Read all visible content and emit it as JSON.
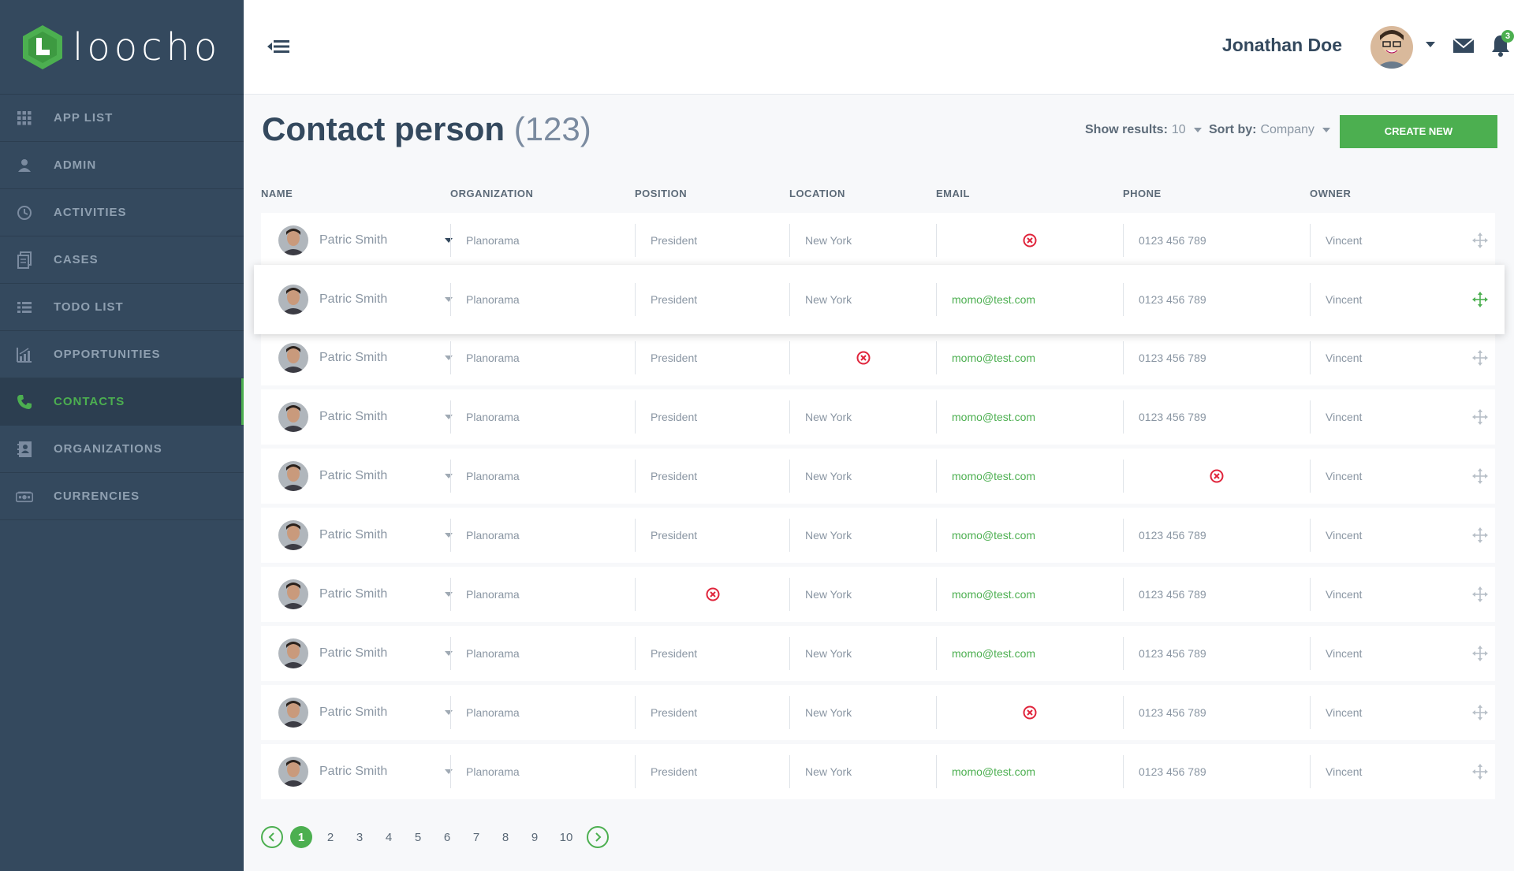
{
  "brand": {
    "name": "loocho",
    "accent": "#4caf50",
    "sidebar_bg": "#34495e"
  },
  "sidebar": {
    "items": [
      {
        "label": "APP LIST",
        "icon": "grid-icon",
        "active": false
      },
      {
        "label": "ADMIN",
        "icon": "user-icon",
        "active": false
      },
      {
        "label": "ACTIVITIES",
        "icon": "clock-icon",
        "active": false
      },
      {
        "label": "CASES",
        "icon": "documents-icon",
        "active": false
      },
      {
        "label": "TODO LIST",
        "icon": "list-icon",
        "active": false
      },
      {
        "label": "OPPORTUNITIES",
        "icon": "bar-chart-icon",
        "active": false
      },
      {
        "label": "CONTACTS",
        "icon": "phone-icon",
        "active": true
      },
      {
        "label": "ORGANIZATIONS",
        "icon": "address-book-icon",
        "active": false
      },
      {
        "label": "CURRENCIES",
        "icon": "money-icon",
        "active": false
      }
    ]
  },
  "header": {
    "user_name": "Jonathan Doe",
    "notifications_count": "3"
  },
  "page": {
    "title": "Contact person",
    "count": "(123)",
    "show_results_label": "Show results:",
    "show_results_value": "10",
    "sort_by_label": "Sort by:",
    "sort_by_value": "Company",
    "create_button": "CREATE NEW"
  },
  "table": {
    "columns": [
      "NAME",
      "ORGANIZATION",
      "POSITION",
      "LOCATION",
      "EMAIL",
      "PHONE",
      "OWNER"
    ],
    "rows": [
      {
        "name": "Patric Smith",
        "organization": "Planorama",
        "position": "President",
        "location": "New York",
        "email": null,
        "phone": "0123 456 789",
        "owner": "Vincent"
      },
      {
        "name": "Patric Smith",
        "organization": "Planorama",
        "position": "President",
        "location": "New York",
        "email": "momo@test.com",
        "phone": "0123 456 789",
        "owner": "Vincent",
        "selected": true
      },
      {
        "name": "Patric Smith",
        "organization": "Planorama",
        "position": "President",
        "location": null,
        "email": "momo@test.com",
        "phone": "0123 456 789",
        "owner": "Vincent"
      },
      {
        "name": "Patric Smith",
        "organization": "Planorama",
        "position": "President",
        "location": "New York",
        "email": "momo@test.com",
        "phone": "0123 456 789",
        "owner": "Vincent"
      },
      {
        "name": "Patric Smith",
        "organization": "Planorama",
        "position": "President",
        "location": "New York",
        "email": "momo@test.com",
        "phone": null,
        "owner": "Vincent"
      },
      {
        "name": "Patric Smith",
        "organization": "Planorama",
        "position": "President",
        "location": "New York",
        "email": "momo@test.com",
        "phone": "0123 456 789",
        "owner": "Vincent"
      },
      {
        "name": "Patric Smith",
        "organization": "Planorama",
        "position": null,
        "location": "New York",
        "email": "momo@test.com",
        "phone": "0123 456 789",
        "owner": "Vincent"
      },
      {
        "name": "Patric Smith",
        "organization": "Planorama",
        "position": "President",
        "location": "New York",
        "email": "momo@test.com",
        "phone": "0123 456 789",
        "owner": "Vincent"
      },
      {
        "name": "Patric Smith",
        "organization": "Planorama",
        "position": "President",
        "location": "New York",
        "email": null,
        "phone": "0123 456 789",
        "owner": "Vincent"
      },
      {
        "name": "Patric Smith",
        "organization": "Planorama",
        "position": "President",
        "location": "New York",
        "email": "momo@test.com",
        "phone": "0123 456 789",
        "owner": "Vincent"
      }
    ]
  },
  "pagination": {
    "pages": [
      "1",
      "2",
      "3",
      "4",
      "5",
      "6",
      "7",
      "8",
      "9",
      "10"
    ],
    "current": "1"
  }
}
